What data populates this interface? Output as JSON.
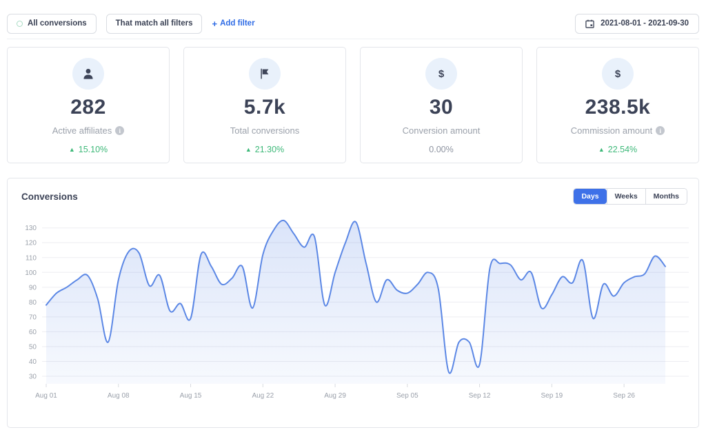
{
  "filters_bar": {
    "all_conversions_label": "All conversions",
    "match_filters_label": "That match all filters",
    "add_filter_plus": "+",
    "add_filter_label": "Add filter",
    "date_range": "2021-08-01 - 2021-09-30"
  },
  "stat_cards": [
    {
      "icon": "user-icon",
      "value": "282",
      "label": "Active affiliates",
      "has_info": true,
      "change": "15.10%",
      "change_direction": "up"
    },
    {
      "icon": "flag-icon",
      "value": "5.7k",
      "label": "Total conversions",
      "has_info": false,
      "change": "21.30%",
      "change_direction": "up"
    },
    {
      "icon": "dollar-icon",
      "value": "30",
      "label": "Conversion amount",
      "has_info": false,
      "change": "0.00%",
      "change_direction": "none"
    },
    {
      "icon": "dollar-icon",
      "value": "238.5k",
      "label": "Commission amount",
      "has_info": true,
      "change": "22.54%",
      "change_direction": "up"
    }
  ],
  "chart_panel": {
    "title": "Conversions",
    "range_tabs": [
      {
        "label": "Days",
        "active": true
      },
      {
        "label": "Weeks",
        "active": false
      },
      {
        "label": "Months",
        "active": false
      }
    ]
  },
  "chart_data": {
    "type": "area",
    "title": "Conversions",
    "x_start": "Aug 01",
    "x_end": "Sep 30",
    "x_tick_labels": [
      "Aug 01",
      "Aug 08",
      "Aug 15",
      "Aug 22",
      "Aug 29",
      "Sep 05",
      "Sep 12",
      "Sep 19",
      "Sep 26"
    ],
    "x_tick_day_indexes": [
      0,
      7,
      14,
      21,
      28,
      35,
      42,
      49,
      56
    ],
    "y_ticks": [
      30,
      40,
      50,
      60,
      70,
      80,
      90,
      100,
      110,
      120,
      130
    ],
    "ylim": [
      24,
      136
    ],
    "grid": "horizontal",
    "legend": "none",
    "line_color": "#5b87e5",
    "values": [
      78,
      86,
      90,
      95,
      98,
      82,
      53,
      95,
      114,
      113,
      91,
      98,
      74,
      79,
      69,
      112,
      104,
      92,
      96,
      104,
      76,
      112,
      128,
      135,
      126,
      117,
      124,
      78,
      100,
      120,
      134,
      106,
      80,
      95,
      88,
      86,
      92,
      100,
      89,
      33,
      53,
      53,
      38,
      103,
      106,
      105,
      95,
      100,
      76,
      85,
      97,
      93,
      108,
      69,
      92,
      84,
      93,
      97,
      99,
      111,
      104
    ]
  },
  "colors": {
    "accent_blue": "#3e71e8",
    "link_blue": "#2e6be5",
    "positive_green": "#3cb878",
    "line_blue": "#5b87e5",
    "dark_text": "#3b4256",
    "muted_text": "#9aa0ab",
    "grid": "#ededf1"
  }
}
